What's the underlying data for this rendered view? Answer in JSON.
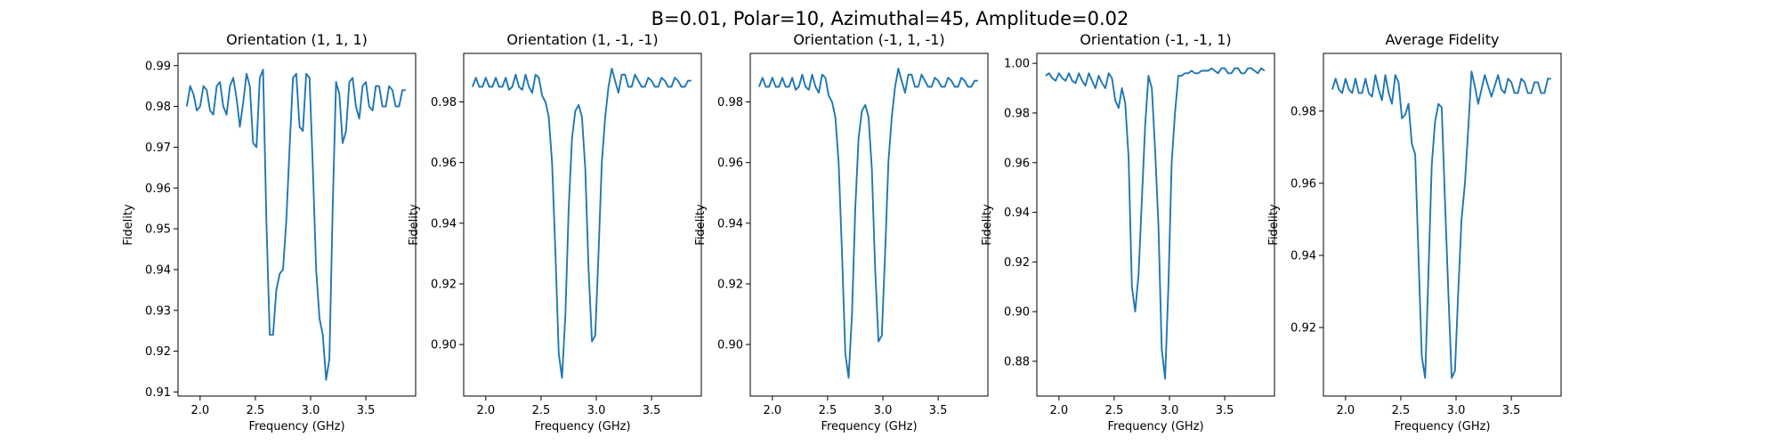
{
  "suptitle": "B=0.01, Polar=10, Azimuthal=45, Amplitude=0.02",
  "chart_data": [
    {
      "type": "line",
      "title": "Orientation (1, 1, 1)",
      "xlabel": "Frequency (GHz)",
      "ylabel": "Fidelity",
      "xlim": [
        1.8,
        3.95
      ],
      "ylim": [
        0.909,
        0.993
      ],
      "xticks": [
        {
          "v": 2.0,
          "label": "2.0"
        },
        {
          "v": 2.5,
          "label": "2.5"
        },
        {
          "v": 3.0,
          "label": "3.0"
        },
        {
          "v": 3.5,
          "label": "3.5"
        }
      ],
      "yticks": [
        {
          "v": 0.91,
          "label": "0.91"
        },
        {
          "v": 0.92,
          "label": "0.92"
        },
        {
          "v": 0.93,
          "label": "0.93"
        },
        {
          "v": 0.94,
          "label": "0.94"
        },
        {
          "v": 0.95,
          "label": "0.95"
        },
        {
          "v": 0.96,
          "label": "0.96"
        },
        {
          "v": 0.97,
          "label": "0.97"
        },
        {
          "v": 0.98,
          "label": "0.98"
        },
        {
          "v": 0.99,
          "label": "0.99"
        }
      ],
      "series": [
        {
          "x": [
            1.88,
            1.91,
            1.94,
            1.97,
            2.0,
            2.03,
            2.06,
            2.09,
            2.12,
            2.15,
            2.18,
            2.21,
            2.24,
            2.27,
            2.3,
            2.33,
            2.36,
            2.39,
            2.42,
            2.45,
            2.48,
            2.51,
            2.54,
            2.57,
            2.6,
            2.63,
            2.66,
            2.69,
            2.72,
            2.75,
            2.78,
            2.81,
            2.84,
            2.87,
            2.9,
            2.93,
            2.96,
            2.99,
            3.02,
            3.05,
            3.08,
            3.11,
            3.14,
            3.17,
            3.2,
            3.23,
            3.26,
            3.29,
            3.32,
            3.35,
            3.38,
            3.41,
            3.44,
            3.47,
            3.5,
            3.53,
            3.56,
            3.59,
            3.62,
            3.65,
            3.68,
            3.71,
            3.74,
            3.77,
            3.8,
            3.83,
            3.86
          ],
          "y": [
            0.98,
            0.985,
            0.983,
            0.979,
            0.98,
            0.985,
            0.984,
            0.979,
            0.978,
            0.985,
            0.986,
            0.98,
            0.978,
            0.985,
            0.987,
            0.982,
            0.975,
            0.981,
            0.988,
            0.985,
            0.971,
            0.97,
            0.987,
            0.989,
            0.952,
            0.924,
            0.924,
            0.935,
            0.939,
            0.94,
            0.952,
            0.97,
            0.987,
            0.988,
            0.975,
            0.974,
            0.988,
            0.987,
            0.965,
            0.94,
            0.928,
            0.924,
            0.913,
            0.918,
            0.956,
            0.986,
            0.983,
            0.971,
            0.974,
            0.986,
            0.987,
            0.98,
            0.977,
            0.985,
            0.986,
            0.98,
            0.979,
            0.985,
            0.985,
            0.98,
            0.98,
            0.985,
            0.984,
            0.98,
            0.98,
            0.984,
            0.984
          ]
        }
      ]
    },
    {
      "type": "line",
      "title": "Orientation (1, -1, -1)",
      "xlabel": "Frequency (GHz)",
      "ylabel": "Fidelity",
      "xlim": [
        1.8,
        3.95
      ],
      "ylim": [
        0.883,
        0.996
      ],
      "xticks": [
        {
          "v": 2.0,
          "label": "2.0"
        },
        {
          "v": 2.5,
          "label": "2.5"
        },
        {
          "v": 3.0,
          "label": "3.0"
        },
        {
          "v": 3.5,
          "label": "3.5"
        }
      ],
      "yticks": [
        {
          "v": 0.9,
          "label": "0.90"
        },
        {
          "v": 0.92,
          "label": "0.92"
        },
        {
          "v": 0.94,
          "label": "0.94"
        },
        {
          "v": 0.96,
          "label": "0.96"
        },
        {
          "v": 0.98,
          "label": "0.98"
        }
      ],
      "series": [
        {
          "x": [
            1.88,
            1.91,
            1.94,
            1.97,
            2.0,
            2.03,
            2.06,
            2.09,
            2.12,
            2.15,
            2.18,
            2.21,
            2.24,
            2.27,
            2.3,
            2.33,
            2.36,
            2.39,
            2.42,
            2.45,
            2.48,
            2.51,
            2.54,
            2.57,
            2.6,
            2.63,
            2.66,
            2.69,
            2.72,
            2.75,
            2.78,
            2.81,
            2.84,
            2.87,
            2.9,
            2.93,
            2.96,
            2.99,
            3.02,
            3.05,
            3.08,
            3.11,
            3.14,
            3.17,
            3.2,
            3.23,
            3.26,
            3.29,
            3.32,
            3.35,
            3.38,
            3.41,
            3.44,
            3.47,
            3.5,
            3.53,
            3.56,
            3.59,
            3.62,
            3.65,
            3.68,
            3.71,
            3.74,
            3.77,
            3.8,
            3.83,
            3.86
          ],
          "y": [
            0.985,
            0.988,
            0.985,
            0.985,
            0.988,
            0.985,
            0.985,
            0.988,
            0.985,
            0.985,
            0.988,
            0.984,
            0.985,
            0.989,
            0.985,
            0.984,
            0.989,
            0.985,
            0.983,
            0.989,
            0.988,
            0.982,
            0.98,
            0.975,
            0.96,
            0.93,
            0.897,
            0.889,
            0.91,
            0.945,
            0.968,
            0.977,
            0.979,
            0.975,
            0.958,
            0.925,
            0.901,
            0.903,
            0.93,
            0.96,
            0.975,
            0.985,
            0.991,
            0.987,
            0.983,
            0.989,
            0.989,
            0.985,
            0.985,
            0.989,
            0.987,
            0.985,
            0.985,
            0.988,
            0.987,
            0.985,
            0.985,
            0.988,
            0.987,
            0.985,
            0.985,
            0.988,
            0.987,
            0.985,
            0.985,
            0.987,
            0.987
          ]
        }
      ]
    },
    {
      "type": "line",
      "title": "Orientation (-1, 1, -1)",
      "xlabel": "Frequency (GHz)",
      "ylabel": "Fidelity",
      "xlim": [
        1.8,
        3.95
      ],
      "ylim": [
        0.883,
        0.996
      ],
      "xticks": [
        {
          "v": 2.0,
          "label": "2.0"
        },
        {
          "v": 2.5,
          "label": "2.5"
        },
        {
          "v": 3.0,
          "label": "3.0"
        },
        {
          "v": 3.5,
          "label": "3.5"
        }
      ],
      "yticks": [
        {
          "v": 0.9,
          "label": "0.90"
        },
        {
          "v": 0.92,
          "label": "0.92"
        },
        {
          "v": 0.94,
          "label": "0.94"
        },
        {
          "v": 0.96,
          "label": "0.96"
        },
        {
          "v": 0.98,
          "label": "0.98"
        }
      ],
      "series": [
        {
          "x": [
            1.88,
            1.91,
            1.94,
            1.97,
            2.0,
            2.03,
            2.06,
            2.09,
            2.12,
            2.15,
            2.18,
            2.21,
            2.24,
            2.27,
            2.3,
            2.33,
            2.36,
            2.39,
            2.42,
            2.45,
            2.48,
            2.51,
            2.54,
            2.57,
            2.6,
            2.63,
            2.66,
            2.69,
            2.72,
            2.75,
            2.78,
            2.81,
            2.84,
            2.87,
            2.9,
            2.93,
            2.96,
            2.99,
            3.02,
            3.05,
            3.08,
            3.11,
            3.14,
            3.17,
            3.2,
            3.23,
            3.26,
            3.29,
            3.32,
            3.35,
            3.38,
            3.41,
            3.44,
            3.47,
            3.5,
            3.53,
            3.56,
            3.59,
            3.62,
            3.65,
            3.68,
            3.71,
            3.74,
            3.77,
            3.8,
            3.83,
            3.86
          ],
          "y": [
            0.985,
            0.988,
            0.985,
            0.985,
            0.988,
            0.985,
            0.985,
            0.988,
            0.985,
            0.985,
            0.988,
            0.984,
            0.985,
            0.989,
            0.985,
            0.984,
            0.989,
            0.985,
            0.983,
            0.989,
            0.988,
            0.982,
            0.98,
            0.975,
            0.96,
            0.93,
            0.897,
            0.889,
            0.91,
            0.945,
            0.968,
            0.977,
            0.979,
            0.975,
            0.958,
            0.925,
            0.901,
            0.903,
            0.93,
            0.96,
            0.975,
            0.985,
            0.991,
            0.987,
            0.983,
            0.989,
            0.989,
            0.985,
            0.985,
            0.989,
            0.987,
            0.985,
            0.985,
            0.988,
            0.987,
            0.985,
            0.985,
            0.988,
            0.987,
            0.985,
            0.985,
            0.988,
            0.987,
            0.985,
            0.985,
            0.987,
            0.987
          ]
        }
      ]
    },
    {
      "type": "line",
      "title": "Orientation (-1, -1, 1)",
      "xlabel": "Frequency (GHz)",
      "ylabel": "Fidelity",
      "xlim": [
        1.8,
        3.95
      ],
      "ylim": [
        0.866,
        1.004
      ],
      "xticks": [
        {
          "v": 2.0,
          "label": "2.0"
        },
        {
          "v": 2.5,
          "label": "2.5"
        },
        {
          "v": 3.0,
          "label": "3.0"
        },
        {
          "v": 3.5,
          "label": "3.5"
        }
      ],
      "yticks": [
        {
          "v": 0.88,
          "label": "0.88"
        },
        {
          "v": 0.9,
          "label": "0.90"
        },
        {
          "v": 0.92,
          "label": "0.92"
        },
        {
          "v": 0.94,
          "label": "0.94"
        },
        {
          "v": 0.96,
          "label": "0.96"
        },
        {
          "v": 0.98,
          "label": "0.98"
        },
        {
          "v": 1.0,
          "label": "1.00"
        }
      ],
      "series": [
        {
          "x": [
            1.88,
            1.91,
            1.94,
            1.97,
            2.0,
            2.03,
            2.06,
            2.09,
            2.12,
            2.15,
            2.18,
            2.21,
            2.24,
            2.27,
            2.3,
            2.33,
            2.36,
            2.39,
            2.42,
            2.45,
            2.48,
            2.51,
            2.54,
            2.57,
            2.6,
            2.63,
            2.66,
            2.69,
            2.72,
            2.75,
            2.78,
            2.81,
            2.84,
            2.87,
            2.9,
            2.93,
            2.96,
            2.99,
            3.02,
            3.05,
            3.08,
            3.11,
            3.14,
            3.17,
            3.2,
            3.23,
            3.26,
            3.29,
            3.32,
            3.35,
            3.38,
            3.41,
            3.44,
            3.47,
            3.5,
            3.53,
            3.56,
            3.59,
            3.62,
            3.65,
            3.68,
            3.71,
            3.74,
            3.77,
            3.8,
            3.83,
            3.86
          ],
          "y": [
            0.995,
            0.996,
            0.994,
            0.993,
            0.996,
            0.994,
            0.993,
            0.996,
            0.993,
            0.992,
            0.996,
            0.993,
            0.991,
            0.996,
            0.993,
            0.99,
            0.995,
            0.992,
            0.99,
            0.996,
            0.994,
            0.985,
            0.982,
            0.99,
            0.984,
            0.962,
            0.91,
            0.9,
            0.915,
            0.945,
            0.975,
            0.995,
            0.99,
            0.965,
            0.935,
            0.885,
            0.873,
            0.91,
            0.96,
            0.98,
            0.995,
            0.995,
            0.996,
            0.996,
            0.997,
            0.996,
            0.996,
            0.997,
            0.997,
            0.997,
            0.998,
            0.997,
            0.996,
            0.998,
            0.998,
            0.996,
            0.996,
            0.998,
            0.998,
            0.996,
            0.996,
            0.998,
            0.998,
            0.997,
            0.996,
            0.998,
            0.997
          ]
        }
      ]
    },
    {
      "type": "line",
      "title": "Average Fidelity",
      "xlabel": "Frequency (GHz)",
      "ylabel": "Fidelity",
      "xlim": [
        1.8,
        3.95
      ],
      "ylim": [
        0.901,
        0.996
      ],
      "xticks": [
        {
          "v": 2.0,
          "label": "2.0"
        },
        {
          "v": 2.5,
          "label": "2.5"
        },
        {
          "v": 3.0,
          "label": "3.0"
        },
        {
          "v": 3.5,
          "label": "3.5"
        }
      ],
      "yticks": [
        {
          "v": 0.92,
          "label": "0.92"
        },
        {
          "v": 0.94,
          "label": "0.94"
        },
        {
          "v": 0.96,
          "label": "0.96"
        },
        {
          "v": 0.98,
          "label": "0.98"
        }
      ],
      "series": [
        {
          "x": [
            1.88,
            1.91,
            1.94,
            1.97,
            2.0,
            2.03,
            2.06,
            2.09,
            2.12,
            2.15,
            2.18,
            2.21,
            2.24,
            2.27,
            2.3,
            2.33,
            2.36,
            2.39,
            2.42,
            2.45,
            2.48,
            2.51,
            2.54,
            2.57,
            2.6,
            2.63,
            2.66,
            2.69,
            2.72,
            2.75,
            2.78,
            2.81,
            2.84,
            2.87,
            2.9,
            2.93,
            2.96,
            2.99,
            3.02,
            3.05,
            3.08,
            3.11,
            3.14,
            3.17,
            3.2,
            3.23,
            3.26,
            3.29,
            3.32,
            3.35,
            3.38,
            3.41,
            3.44,
            3.47,
            3.5,
            3.53,
            3.56,
            3.59,
            3.62,
            3.65,
            3.68,
            3.71,
            3.74,
            3.77,
            3.8,
            3.83,
            3.86
          ],
          "y": [
            0.986,
            0.989,
            0.986,
            0.985,
            0.989,
            0.986,
            0.985,
            0.989,
            0.985,
            0.985,
            0.989,
            0.985,
            0.984,
            0.99,
            0.986,
            0.983,
            0.99,
            0.985,
            0.982,
            0.99,
            0.988,
            0.978,
            0.979,
            0.982,
            0.971,
            0.968,
            0.94,
            0.912,
            0.906,
            0.935,
            0.965,
            0.977,
            0.982,
            0.981,
            0.955,
            0.93,
            0.906,
            0.908,
            0.93,
            0.95,
            0.96,
            0.975,
            0.991,
            0.987,
            0.982,
            0.986,
            0.99,
            0.987,
            0.984,
            0.987,
            0.99,
            0.986,
            0.985,
            0.989,
            0.988,
            0.985,
            0.985,
            0.989,
            0.988,
            0.985,
            0.985,
            0.988,
            0.988,
            0.985,
            0.985,
            0.989,
            0.989
          ]
        }
      ]
    }
  ]
}
